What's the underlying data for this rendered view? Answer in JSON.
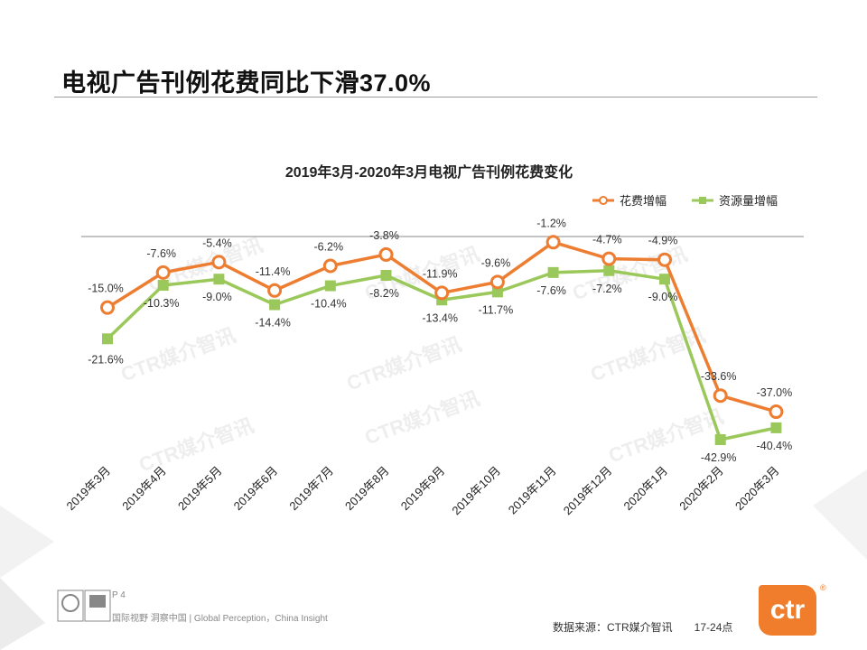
{
  "page": {
    "title": "电视广告刊例花费同比下滑37.0%",
    "page_number": "P 4",
    "tagline": "国际视野  洞察中国 | Global Perception，China Insight",
    "source_label": "数据来源：CTR媒介智讯",
    "source_time": "17-24点",
    "brand": "ctr",
    "brand_reg": "®",
    "watermark": "CTR媒介智讯",
    "colors": {
      "orange": "#ED7D31",
      "green": "#9BC85A",
      "brand": "#F07D2C"
    }
  },
  "chart_data": {
    "type": "line",
    "title": "2019年3月-2020年3月电视广告刊例花费变化",
    "categories": [
      "2019年3月",
      "2019年4月",
      "2019年5月",
      "2019年6月",
      "2019年7月",
      "2019年8月",
      "2019年9月",
      "2019年10月",
      "2019年11月",
      "2019年12月",
      "2020年1月",
      "2020年2月",
      "2020年3月"
    ],
    "series": [
      {
        "name": "花费增幅",
        "color": "#ED7D31",
        "values": [
          -15.0,
          -7.6,
          -5.4,
          -11.4,
          -6.2,
          -3.8,
          -11.9,
          -9.6,
          -1.2,
          -4.7,
          -4.9,
          -33.6,
          -37.0
        ],
        "labels": [
          "-15.0%",
          "-7.6%",
          "-5.4%",
          "-11.4%",
          "-6.2%",
          "-3.8%",
          "-11.9%",
          "-9.6%",
          "-1.2%",
          "-4.7%",
          "-4.9%",
          "-33.6%",
          "-37.0%"
        ]
      },
      {
        "name": "资源量增幅",
        "color": "#9BC85A",
        "values": [
          -21.6,
          -10.3,
          -9.0,
          -14.4,
          -10.4,
          -8.2,
          -13.4,
          -11.7,
          -7.6,
          -7.2,
          -9.0,
          -42.9,
          -40.4
        ],
        "labels": [
          "-21.6%",
          "-10.3%",
          "-9.0%",
          "-14.4%",
          "-10.4%",
          "-8.2%",
          "-13.4%",
          "-11.7%",
          "-7.6%",
          "-7.2%",
          "-9.0%",
          "-42.9%",
          "-40.4%"
        ]
      }
    ],
    "ylim": [
      -45,
      0
    ],
    "legend": "top-right",
    "grid": false
  }
}
